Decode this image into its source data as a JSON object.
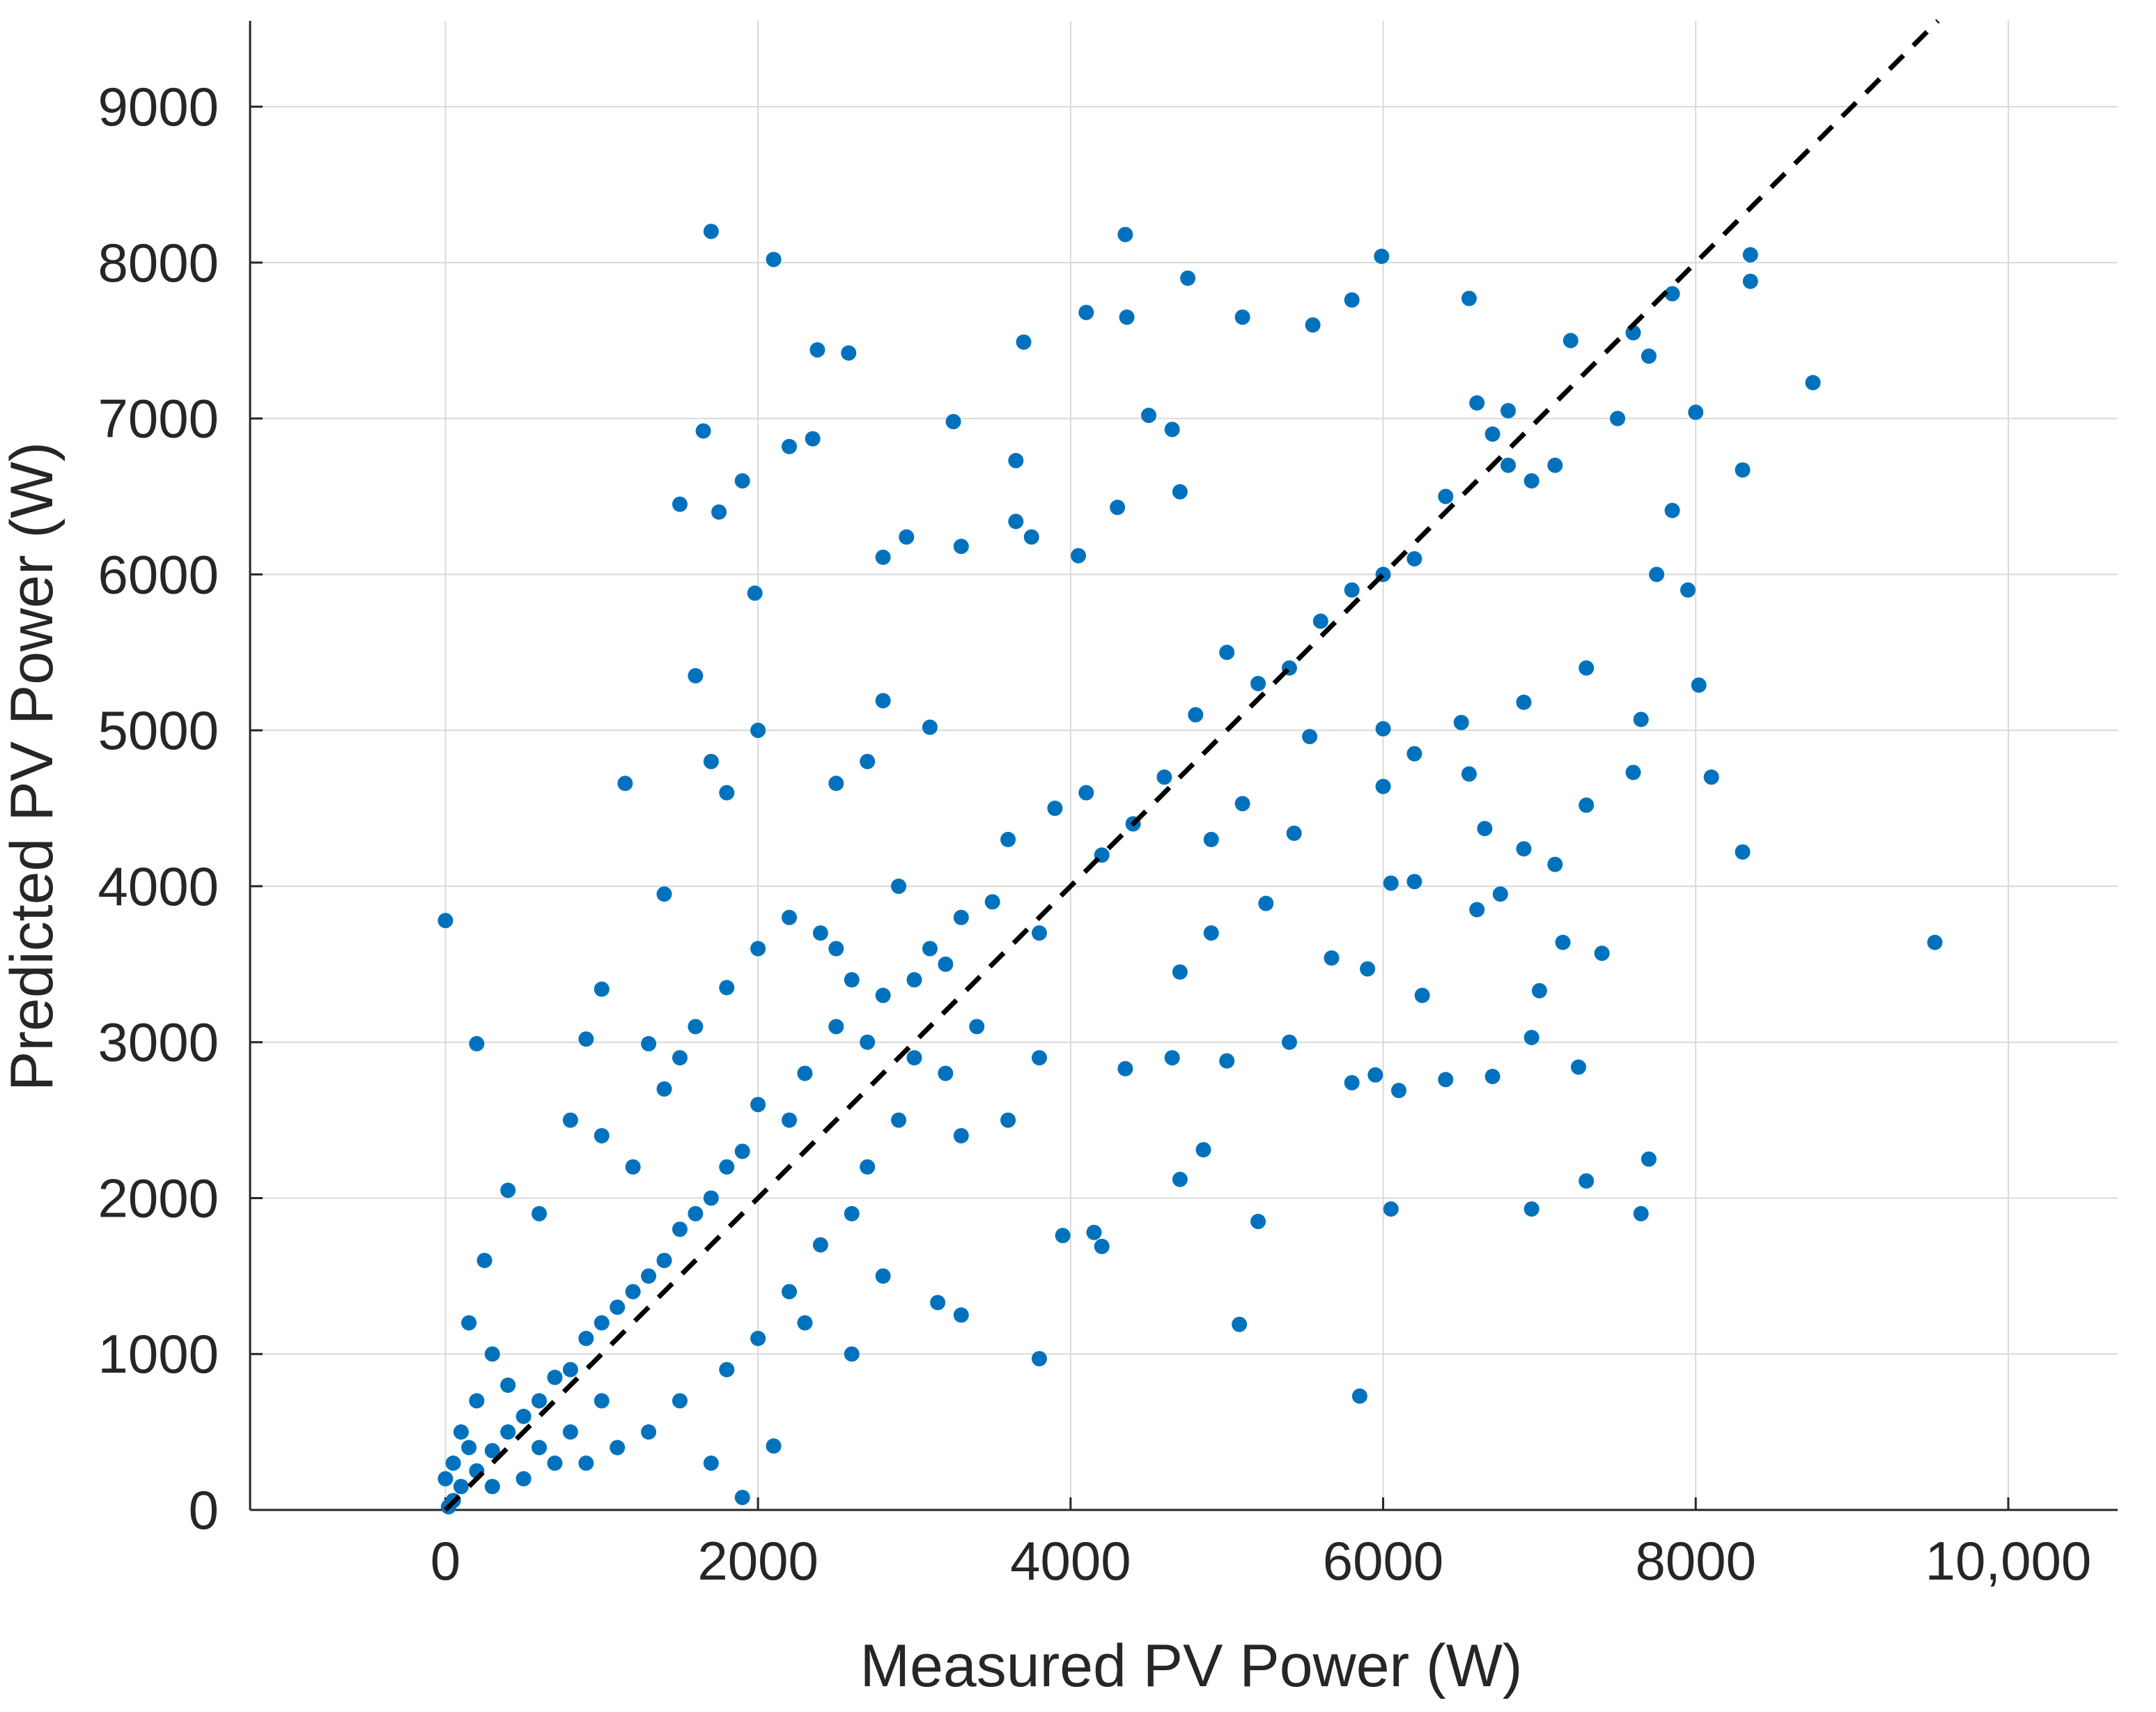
{
  "chart_data": {
    "type": "scatter",
    "x_label": "Measured PV Power (W)",
    "y_label": "Predicted PV Power (W)",
    "color": "#0072bd",
    "grid": true,
    "xlim": [
      -1250,
      10700
    ],
    "ylim": [
      0,
      9550
    ],
    "xticks": [
      0,
      2000,
      4000,
      6000,
      8000,
      {
        "value": 10000,
        "label": "10,000"
      }
    ],
    "yticks": [
      0,
      1000,
      2000,
      3000,
      4000,
      5000,
      6000,
      7000,
      8000,
      9000
    ],
    "x": [
      1700,
      2100,
      4350,
      5990,
      2380,
      2580,
      3700,
      4750,
      4360,
      4100,
      5100,
      5550,
      5800,
      6550,
      8750,
      9530,
      0,
      200,
      1150,
      3800,
      5850,
      5080,
      1900,
      2100,
      6800,
      7200,
      7600,
      8350,
      8350,
      8300,
      8100,
      8300,
      7650,
      7700,
      7300,
      6950,
      6050,
      5200,
      4700,
      4850,
      4150,
      4200,
      3950,
      7250,
      6700,
      6400,
      6100,
      5950,
      5800,
      5000,
      4650,
      4350,
      7000,
      6950,
      7150,
      7400,
      6250,
      5900,
      5670,
      5400,
      5250,
      4900,
      4700,
      6050,
      6200,
      6600,
      6750,
      7300,
      7100,
      6900,
      6650,
      6550,
      6200,
      6000,
      5430,
      5100,
      4900,
      5530,
      6000,
      6500,
      6900,
      7300,
      7600,
      7650,
      7750,
      7850,
      7950,
      8020,
      8000,
      7850,
      7700,
      7500,
      7100,
      6950,
      6800,
      6700,
      6600,
      6400,
      6200,
      6000,
      5800,
      5600,
      5400,
      5200,
      5000,
      4800,
      4600,
      4400,
      4200,
      4100,
      3900,
      3800,
      3600,
      3500,
      3300,
      3100,
      3000,
      2800,
      2700,
      2500,
      2300,
      2200,
      2000,
      1900,
      1800,
      1700,
      1600,
      1500,
      1400,
      1300,
      1200,
      1100,
      1000,
      900,
      800,
      700,
      600,
      500,
      400,
      300,
      200,
      100,
      50,
      20,
      1600,
      1700,
      1800,
      1500,
      1650,
      1750,
      1980,
      1900,
      2200,
      2350,
      3250,
      3650,
      3650,
      2800,
      3300,
      2950,
      4050,
      4500,
      4650,
      4300,
      4700,
      3750,
      3100,
      2800,
      2700,
      2500,
      2000,
      1400,
      1000,
      900,
      1300,
      1500,
      2400,
      2600,
      2900,
      3200,
      3400,
      3200,
      2900,
      2700,
      2600,
      2400,
      2200,
      2000,
      1800,
      1500,
      1300,
      1100,
      900,
      800,
      700,
      500,
      400,
      300,
      200,
      150,
      250,
      400,
      600,
      800,
      1000,
      1200,
      1400,
      1600,
      1800,
      2000,
      2200,
      2500,
      3000,
      3300,
      3600,
      3800,
      2300,
      2600,
      2800,
      3150,
      3300,
      1700,
      1000,
      600,
      300,
      150,
      100,
      50,
      0
    ],
    "values": [
      8200,
      8020,
      8180,
      8040,
      7440,
      7420,
      7490,
      7900,
      7650,
      7680,
      7650,
      7600,
      7760,
      7770,
      7230,
      3640,
      3780,
      2990,
      4660,
      970,
      730,
      1190,
      80,
      410,
      7050,
      7500,
      7550,
      8050,
      7880,
      6670,
      4700,
      4220,
      1900,
      2250,
      2110,
      1930,
      1930,
      1850,
      2120,
      2310,
      1780,
      1690,
      1760,
      2840,
      2780,
      2760,
      2690,
      2790,
      2740,
      2880,
      2900,
      2830,
      3330,
      3030,
      3640,
      3570,
      3300,
      3470,
      3540,
      3000,
      3890,
      3700,
      3450,
      4020,
      4030,
      3850,
      3950,
      4520,
      4140,
      4240,
      4370,
      4720,
      4850,
      4640,
      4340,
      4530,
      4300,
      4960,
      5010,
      5050,
      5180,
      5400,
      4730,
      5070,
      6000,
      6410,
      5900,
      5290,
      7040,
      7800,
      7400,
      7000,
      6700,
      6600,
      6700,
      6900,
      7100,
      6500,
      6100,
      6000,
      5900,
      5700,
      5400,
      5300,
      5500,
      5100,
      4700,
      4400,
      4200,
      4600,
      4500,
      3700,
      4300,
      3900,
      3800,
      3600,
      3400,
      3300,
      3000,
      3100,
      2800,
      2500,
      2600,
      2300,
      2200,
      2000,
      1900,
      1800,
      1600,
      1500,
      1400,
      1300,
      1200,
      1100,
      900,
      850,
      700,
      600,
      500,
      380,
      250,
      150,
      60,
      20,
      5350,
      4800,
      4600,
      6450,
      6920,
      6400,
      5880,
      6600,
      6820,
      6870,
      6980,
      6730,
      6340,
      6110,
      6180,
      6240,
      6120,
      7020,
      6930,
      6430,
      6530,
      6240,
      5020,
      5190,
      4800,
      4660,
      5000,
      3950,
      3340,
      3020,
      2990,
      2900,
      3700,
      3400,
      4000,
      3500,
      3100,
      2800,
      2500,
      2200,
      1900,
      1700,
      1400,
      1100,
      900,
      700,
      500,
      400,
      300,
      500,
      300,
      200,
      800,
      1000,
      700,
      1200,
      1600,
      2050,
      1900,
      2500,
      2400,
      2200,
      2700,
      3100,
      3350,
      3600,
      3800,
      3600,
      2900,
      2400,
      2500,
      2900,
      1200,
      1000,
      1500,
      1330,
      1250,
      300,
      700,
      400,
      150,
      400,
      500,
      300,
      200
    ]
  }
}
